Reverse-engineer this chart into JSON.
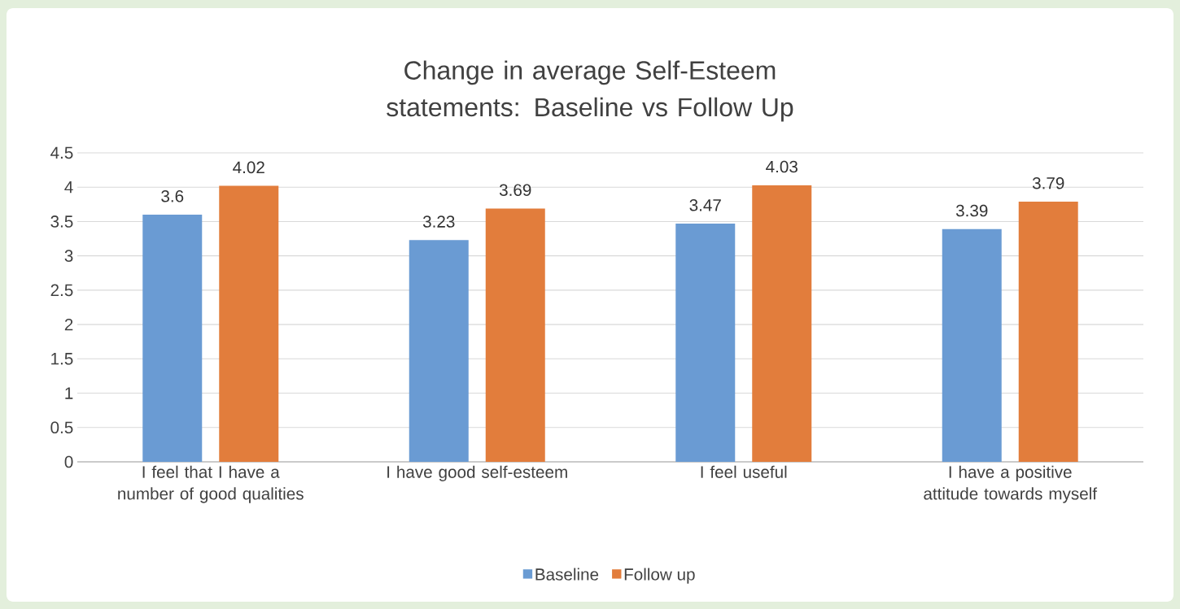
{
  "chart_data": {
    "type": "bar",
    "title": "Change in average Self-Esteem statements: Baseline vs Follow Up",
    "categories": [
      "I feel that I have a number of good qualities",
      "I have good self-esteem",
      "I feel useful",
      "I have a positive attitude towards myself"
    ],
    "series": [
      {
        "name": "Baseline",
        "color": "#6a9bd3",
        "values": [
          3.6,
          3.23,
          3.47,
          3.39
        ]
      },
      {
        "name": "Follow up",
        "color": "#e27d3c",
        "values": [
          4.02,
          3.69,
          4.03,
          3.79
        ]
      }
    ],
    "ylim": [
      0,
      4.5
    ],
    "yticks": [
      0,
      0.5,
      1,
      1.5,
      2,
      2.5,
      3,
      3.5,
      4,
      4.5
    ],
    "grid": "y",
    "legend": "bottom",
    "data_labels": true
  }
}
